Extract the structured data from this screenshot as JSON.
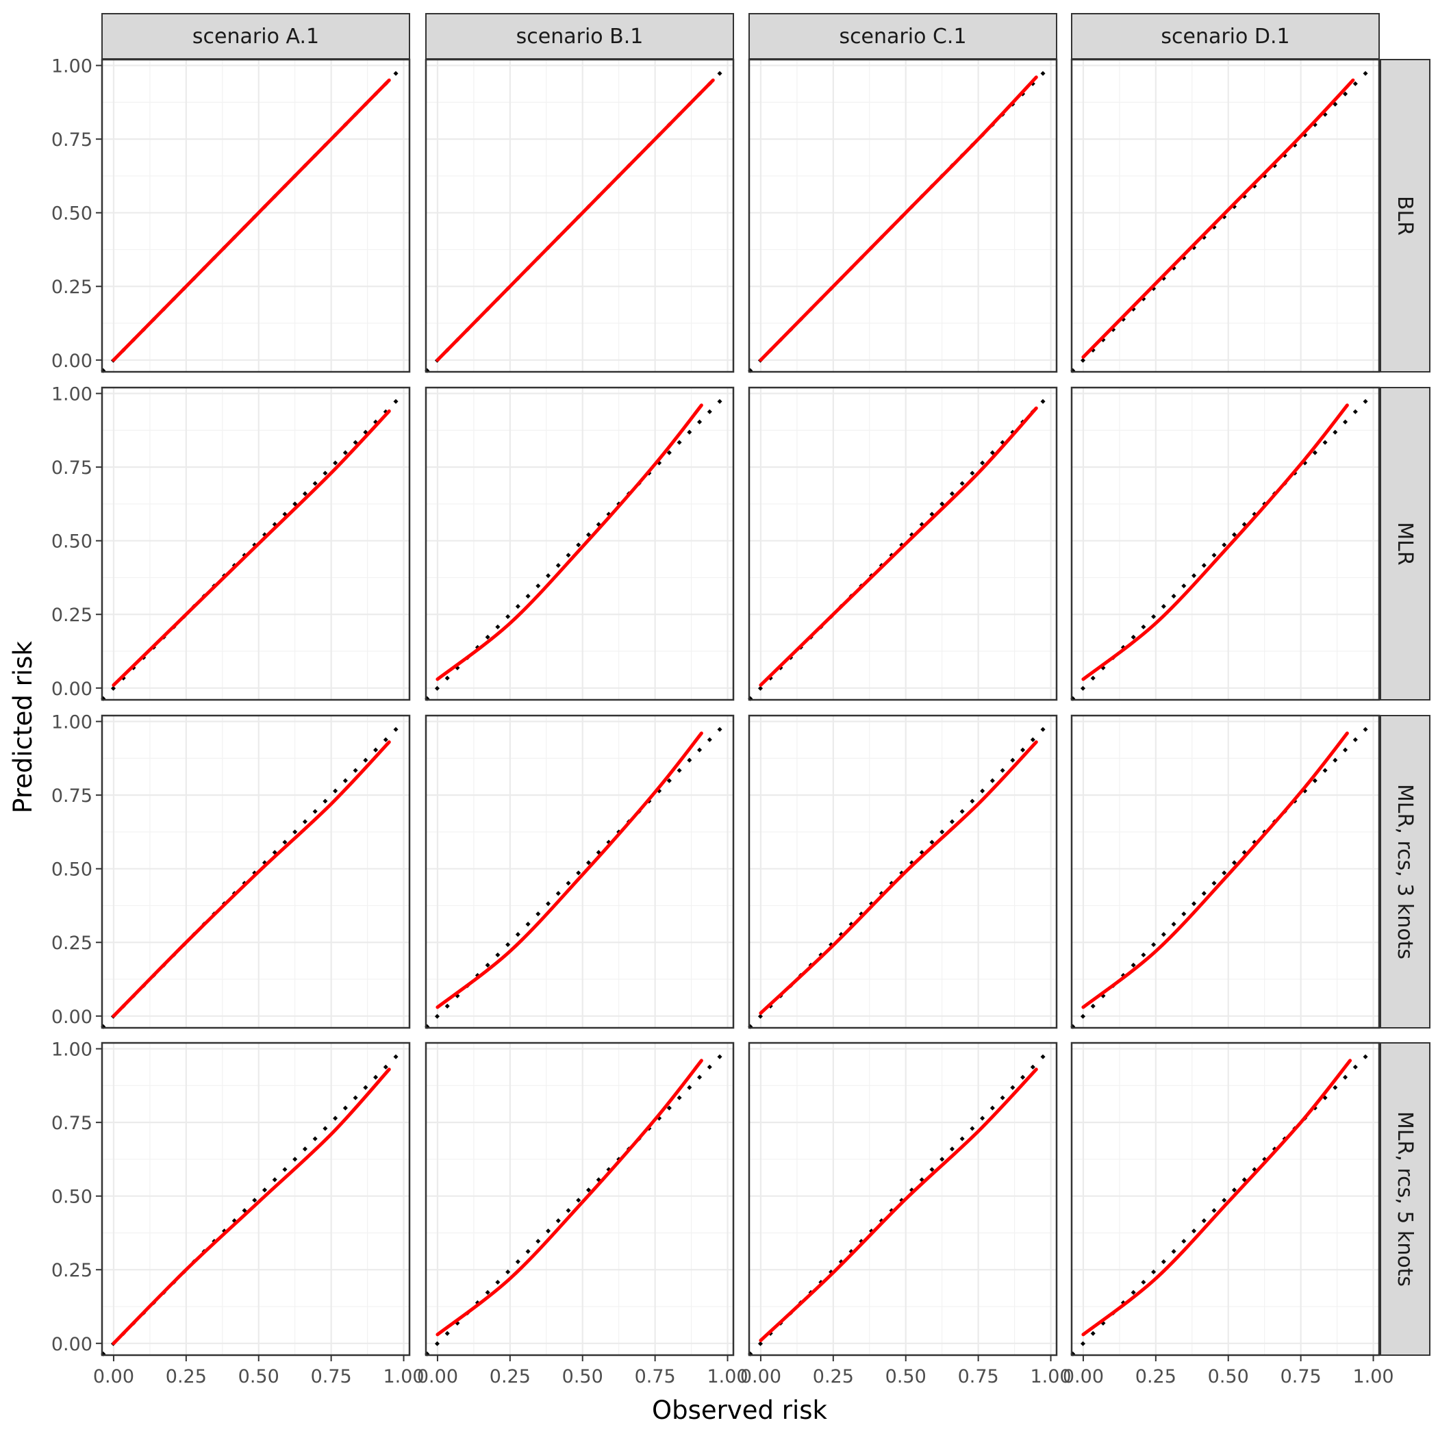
{
  "chart_data": {
    "type": "line",
    "xlabel": "Observed risk",
    "ylabel": "Predicted risk",
    "column_strips": [
      "scenario A.1",
      "scenario B.1",
      "scenario C.1",
      "scenario D.1"
    ],
    "row_strips": [
      "BLR",
      "MLR",
      "MLR, rcs, 3 knots",
      "MLR, rcs, 5 knots"
    ],
    "xlim": [
      -0.04,
      1.02
    ],
    "ylim": [
      -0.04,
      1.02
    ],
    "x_ticks": [
      0.0,
      0.25,
      0.5,
      0.75,
      1.0
    ],
    "y_ticks": [
      0.0,
      0.25,
      0.5,
      0.75,
      1.0
    ],
    "x_tick_labels": [
      "0.00",
      "0.25",
      "0.50",
      "0.75",
      "1.00"
    ],
    "y_tick_labels": [
      "0.00",
      "0.25",
      "0.50",
      "0.75",
      "1.00"
    ],
    "grid": true,
    "reference_line": {
      "style": "dotted",
      "color": "#000000",
      "x": [
        -0.04,
        1.0
      ],
      "y": [
        -0.04,
        1.0
      ]
    },
    "curve_color": "#ff0000",
    "panels": [
      {
        "row": "BLR",
        "column": "scenario A.1",
        "x": [
          0.0,
          0.25,
          0.5,
          0.75,
          0.95
        ],
        "y": [
          0.0,
          0.25,
          0.5,
          0.75,
          0.95
        ]
      },
      {
        "row": "BLR",
        "column": "scenario B.1",
        "x": [
          0.0,
          0.25,
          0.5,
          0.75,
          0.95
        ],
        "y": [
          0.0,
          0.25,
          0.5,
          0.75,
          0.95
        ]
      },
      {
        "row": "BLR",
        "column": "scenario C.1",
        "x": [
          0.0,
          0.25,
          0.5,
          0.75,
          0.95
        ],
        "y": [
          0.0,
          0.25,
          0.5,
          0.75,
          0.96
        ]
      },
      {
        "row": "BLR",
        "column": "scenario D.1",
        "x": [
          0.0,
          0.25,
          0.5,
          0.75,
          0.93
        ],
        "y": [
          0.01,
          0.26,
          0.51,
          0.76,
          0.95
        ]
      },
      {
        "row": "MLR",
        "column": "scenario A.1",
        "x": [
          0.0,
          0.25,
          0.5,
          0.75,
          0.95
        ],
        "y": [
          0.01,
          0.25,
          0.49,
          0.73,
          0.94
        ]
      },
      {
        "row": "MLR",
        "column": "scenario B.1",
        "x": [
          0.0,
          0.25,
          0.5,
          0.75,
          0.91
        ],
        "y": [
          0.03,
          0.22,
          0.48,
          0.76,
          0.96
        ]
      },
      {
        "row": "MLR",
        "column": "scenario C.1",
        "x": [
          0.0,
          0.25,
          0.5,
          0.75,
          0.95
        ],
        "y": [
          0.01,
          0.25,
          0.49,
          0.73,
          0.95
        ]
      },
      {
        "row": "MLR",
        "column": "scenario D.1",
        "x": [
          0.0,
          0.25,
          0.5,
          0.75,
          0.91
        ],
        "y": [
          0.03,
          0.22,
          0.48,
          0.76,
          0.96
        ]
      },
      {
        "row": "MLR, rcs, 3 knots",
        "column": "scenario A.1",
        "x": [
          0.0,
          0.25,
          0.5,
          0.75,
          0.95
        ],
        "y": [
          0.0,
          0.25,
          0.49,
          0.72,
          0.93
        ]
      },
      {
        "row": "MLR, rcs, 3 knots",
        "column": "scenario B.1",
        "x": [
          0.0,
          0.25,
          0.5,
          0.75,
          0.91
        ],
        "y": [
          0.03,
          0.22,
          0.48,
          0.76,
          0.96
        ]
      },
      {
        "row": "MLR, rcs, 3 knots",
        "column": "scenario C.1",
        "x": [
          0.0,
          0.25,
          0.5,
          0.75,
          0.95
        ],
        "y": [
          0.01,
          0.24,
          0.49,
          0.72,
          0.93
        ]
      },
      {
        "row": "MLR, rcs, 3 knots",
        "column": "scenario D.1",
        "x": [
          0.0,
          0.25,
          0.5,
          0.75,
          0.91
        ],
        "y": [
          0.03,
          0.22,
          0.48,
          0.76,
          0.96
        ]
      },
      {
        "row": "MLR, rcs, 5 knots",
        "column": "scenario A.1",
        "x": [
          0.0,
          0.25,
          0.5,
          0.75,
          0.95
        ],
        "y": [
          0.0,
          0.25,
          0.48,
          0.71,
          0.93
        ]
      },
      {
        "row": "MLR, rcs, 5 knots",
        "column": "scenario B.1",
        "x": [
          0.0,
          0.25,
          0.5,
          0.75,
          0.91
        ],
        "y": [
          0.03,
          0.22,
          0.48,
          0.76,
          0.96
        ]
      },
      {
        "row": "MLR, rcs, 5 knots",
        "column": "scenario C.1",
        "x": [
          0.0,
          0.25,
          0.5,
          0.75,
          0.95
        ],
        "y": [
          0.01,
          0.24,
          0.49,
          0.72,
          0.93
        ]
      },
      {
        "row": "MLR, rcs, 5 knots",
        "column": "scenario D.1",
        "x": [
          0.0,
          0.25,
          0.5,
          0.75,
          0.92
        ],
        "y": [
          0.03,
          0.22,
          0.48,
          0.75,
          0.96
        ]
      }
    ]
  }
}
